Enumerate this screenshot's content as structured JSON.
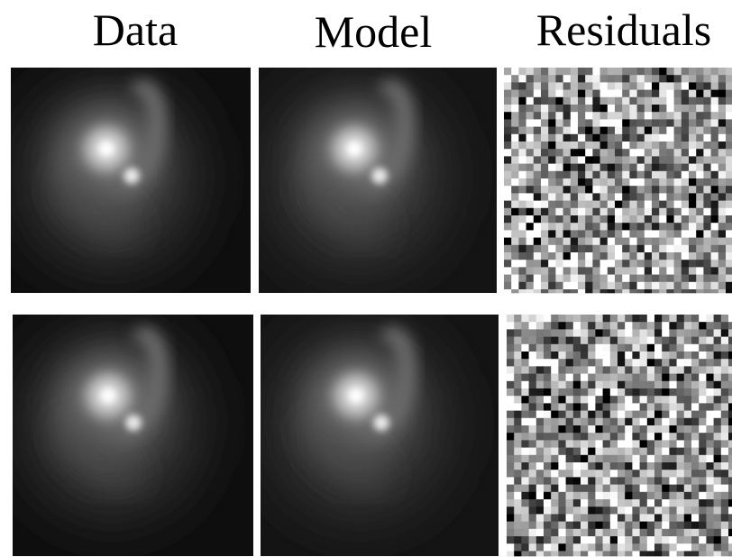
{
  "headers": [
    "Data",
    "Model",
    "Residuals"
  ]
}
